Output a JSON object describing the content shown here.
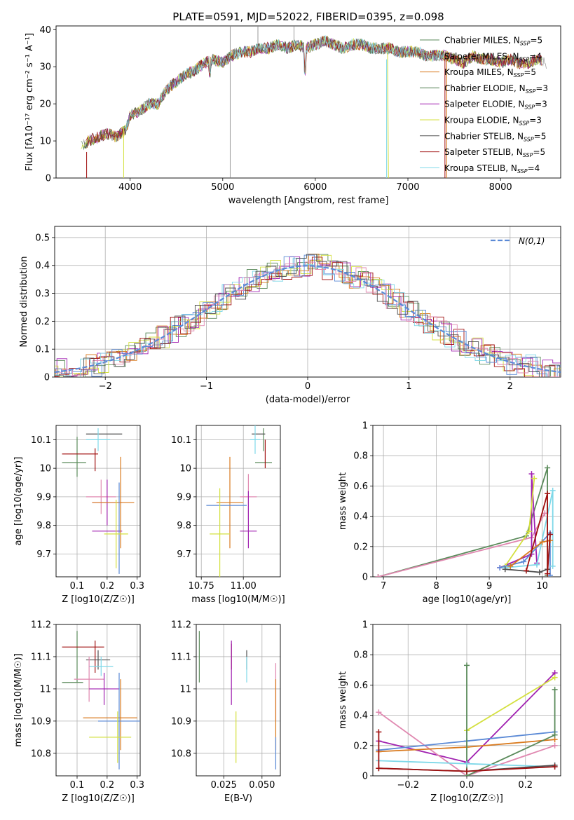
{
  "chart_data": [
    {
      "id": "spectrum",
      "type": "line",
      "title": "PLATE=0591, MJD=52022, FIBERID=0395, z=0.098",
      "xlabel": "wavelength [Angstrom, rest frame]",
      "ylabel": "Flux [fλ10⁻¹⁷ erg cm⁻² s⁻¹ A⁻¹]",
      "xlim": [
        3200,
        8650
      ],
      "ylim": [
        0,
        41
      ],
      "xticks": [
        4000,
        5000,
        6000,
        7000,
        8000
      ],
      "yticks": [
        0,
        10,
        20,
        30,
        40
      ],
      "grid": false,
      "legend_position": "top-right",
      "spectrum_envelope": {
        "x": [
          3450,
          3550,
          3650,
          3750,
          3850,
          3950,
          4000,
          4100,
          4200,
          4300,
          4400,
          4500,
          4600,
          4700,
          4800,
          4900,
          5000,
          5100,
          5200,
          5300,
          5400,
          5500,
          5600,
          5700,
          5800,
          5900,
          6000,
          6100,
          6200,
          6300,
          6400,
          6500,
          6600,
          6700,
          6800,
          6900,
          7000,
          7100,
          7200,
          7300,
          7400,
          7500,
          7600,
          7700,
          7800,
          7900,
          8000,
          8100,
          8200,
          8300,
          8400,
          8500
        ],
        "y": [
          8,
          10,
          11,
          12,
          11,
          13,
          17,
          18,
          20,
          20,
          24,
          26,
          28,
          29,
          31,
          32,
          31,
          33,
          34,
          34,
          35,
          35,
          36,
          35,
          36,
          35,
          36,
          37,
          36,
          35,
          36,
          36,
          35,
          35,
          35,
          34,
          34,
          34,
          33,
          33,
          33,
          32,
          31,
          33,
          32,
          32,
          31,
          32,
          31,
          31,
          32,
          31
        ]
      },
      "series": [
        {
          "name": "Chabrier MILES, NSSP=5",
          "color": "#5a8a5a"
        },
        {
          "name": "Salpeter MILES, NSSP=4",
          "color": "#8a8a8a"
        },
        {
          "name": "Kroupa MILES, NSSP=5",
          "color": "#d97a1e"
        },
        {
          "name": "Chabrier ELODIE, NSSP=3",
          "color": "#4a7a4a"
        },
        {
          "name": "Salpeter ELODIE, NSSP=3",
          "color": "#a020b0"
        },
        {
          "name": "Kroupa ELODIE, NSSP=3",
          "color": "#d4e040"
        },
        {
          "name": "Chabrier STELIB, NSSP=5",
          "color": "#505050"
        },
        {
          "name": "Salpeter STELIB, NSSP=5",
          "color": "#a01010"
        },
        {
          "name": "Kroupa STELIB, NSSP=4",
          "color": "#7ed8e8"
        }
      ]
    },
    {
      "id": "residuals",
      "type": "line",
      "xlabel": "(data-model)/error",
      "ylabel": "Normed distribution",
      "xlim": [
        -2.5,
        2.5
      ],
      "ylim": [
        0,
        0.54
      ],
      "xticks": [
        -2,
        -1,
        0,
        1,
        2
      ],
      "yticks": [
        0.0,
        0.1,
        0.2,
        0.3,
        0.4,
        0.5
      ],
      "grid": true,
      "legend_position": "top-right",
      "reference_curve": {
        "name": "N(0,1)",
        "color": "#5b8ad6",
        "dashed": true
      },
      "histogram_colors": [
        "#5a8a5a",
        "#d97a1e",
        "#a020b0",
        "#d4e040",
        "#a01010",
        "#7ed8e8",
        "#5b8ad6",
        "#e088b0",
        "#505050"
      ]
    },
    {
      "id": "age_vs_Z",
      "type": "scatter",
      "xlabel": "Z [log10(Z/Z☉)]",
      "ylabel": "age  [log10(age/yr)]",
      "xlim": [
        0.03,
        0.31
      ],
      "ylim": [
        9.62,
        10.15
      ],
      "xticks": [
        0.1,
        0.2,
        0.3
      ],
      "yticks": [
        9.7,
        9.8,
        9.9,
        10.0,
        10.1
      ],
      "grid": true,
      "points": [
        {
          "x": 0.1,
          "y": 10.04,
          "xerr": 0.0,
          "yerr": 0.07,
          "color": "#5a8a5a"
        },
        {
          "x": 0.09,
          "y": 10.02,
          "xerr": 0.04,
          "yerr": 0.0,
          "color": "#5a8a5a"
        },
        {
          "x": 0.11,
          "y": 10.05,
          "xerr": 0.06,
          "yerr": 0.0,
          "color": "#a01010"
        },
        {
          "x": 0.16,
          "y": 10.03,
          "xerr": 0.0,
          "yerr": 0.04,
          "color": "#a01010"
        },
        {
          "x": 0.19,
          "y": 10.12,
          "xerr": 0.06,
          "yerr": 0.0,
          "color": "#505050"
        },
        {
          "x": 0.17,
          "y": 10.1,
          "xerr": 0.04,
          "yerr": 0.04,
          "color": "#7ed8e8"
        },
        {
          "x": 0.18,
          "y": 9.9,
          "xerr": 0.05,
          "yerr": 0.06,
          "color": "#e088b0"
        },
        {
          "x": 0.2,
          "y": 9.88,
          "xerr": 0.05,
          "yerr": 0.08,
          "color": "#a020b0"
        },
        {
          "x": 0.2,
          "y": 9.78,
          "xerr": 0.05,
          "yerr": 0.0,
          "color": "#a020b0"
        },
        {
          "x": 0.22,
          "y": 9.88,
          "xerr": 0.07,
          "yerr": 0.0,
          "color": "#d97a1e"
        },
        {
          "x": 0.245,
          "y": 9.88,
          "xerr": 0.0,
          "yerr": 0.16,
          "color": "#d97a1e"
        },
        {
          "x": 0.24,
          "y": 9.79,
          "xerr": 0.0,
          "yerr": 0.16,
          "color": "#5b8ad6"
        },
        {
          "x": 0.23,
          "y": 9.77,
          "xerr": 0.04,
          "yerr": 0.12,
          "color": "#d4e040"
        }
      ]
    },
    {
      "id": "age_vs_mass",
      "type": "scatter",
      "xlabel": "mass [log10(M/M☉)]",
      "ylabel": "",
      "xlim": [
        10.72,
        11.22
      ],
      "ylim": [
        9.62,
        10.15
      ],
      "xticks": [
        10.75,
        11.0
      ],
      "yticks": [
        9.7,
        9.8,
        9.9,
        10.0,
        10.1
      ],
      "grid": true,
      "points": [
        {
          "x": 11.12,
          "y": 10.1,
          "xerr": 0.0,
          "yerr": 0.04,
          "color": "#5a8a5a"
        },
        {
          "x": 11.12,
          "y": 10.02,
          "xerr": 0.05,
          "yerr": 0.0,
          "color": "#5a8a5a"
        },
        {
          "x": 11.13,
          "y": 10.05,
          "xerr": 0.0,
          "yerr": 0.05,
          "color": "#a01010"
        },
        {
          "x": 11.09,
          "y": 10.12,
          "xerr": 0.04,
          "yerr": 0.0,
          "color": "#505050"
        },
        {
          "x": 11.07,
          "y": 10.1,
          "xerr": 0.03,
          "yerr": 0.05,
          "color": "#7ed8e8"
        },
        {
          "x": 11.03,
          "y": 9.9,
          "xerr": 0.05,
          "yerr": 0.08,
          "color": "#e088b0"
        },
        {
          "x": 11.03,
          "y": 9.82,
          "xerr": 0.0,
          "yerr": 0.1,
          "color": "#a020b0"
        },
        {
          "x": 11.03,
          "y": 9.78,
          "xerr": 0.05,
          "yerr": 0.0,
          "color": "#a020b0"
        },
        {
          "x": 10.92,
          "y": 9.88,
          "xerr": 0.08,
          "yerr": 0.16,
          "color": "#d97a1e"
        },
        {
          "x": 10.9,
          "y": 9.87,
          "xerr": 0.12,
          "yerr": 0.0,
          "color": "#5b8ad6"
        },
        {
          "x": 10.86,
          "y": 9.77,
          "xerr": 0.06,
          "yerr": 0.16,
          "color": "#d4e040"
        }
      ]
    },
    {
      "id": "weight_vs_age",
      "type": "line",
      "xlabel": "age  [log10(age/yr)]",
      "ylabel": "mass weight",
      "xlim": [
        6.8,
        10.35
      ],
      "ylim": [
        0,
        1.0
      ],
      "xticks": [
        7,
        8,
        9,
        10
      ],
      "yticks": [
        0.0,
        0.2,
        0.4,
        0.6,
        0.8,
        1.0
      ],
      "grid": true,
      "series": [
        {
          "color": "#5a8a5a",
          "x": [
            6.9,
            9.7,
            10.1,
            10.1
          ],
          "y": [
            0.0,
            0.27,
            0.72,
            0.01
          ]
        },
        {
          "color": "#e088b0",
          "x": [
            6.9,
            9.8,
            10.05
          ],
          "y": [
            0.0,
            0.26,
            0.42
          ]
        },
        {
          "color": "#a020b0",
          "x": [
            9.2,
            9.8,
            9.8,
            9.9
          ],
          "y": [
            0.06,
            0.15,
            0.68,
            0.09
          ]
        },
        {
          "color": "#d4e040",
          "x": [
            9.3,
            9.75,
            9.85
          ],
          "y": [
            0.07,
            0.3,
            0.65
          ]
        },
        {
          "color": "#5b8ad6",
          "x": [
            9.2,
            9.65,
            10.15,
            10.15
          ],
          "y": [
            0.06,
            0.1,
            0.29,
            0.01
          ]
        },
        {
          "color": "#7ed8e8",
          "x": [
            9.3,
            9.9,
            10.2,
            10.2
          ],
          "y": [
            0.06,
            0.08,
            0.57,
            0.07
          ]
        },
        {
          "color": "#d97a1e",
          "x": [
            9.4,
            10.0,
            10.15
          ],
          "y": [
            0.07,
            0.23,
            0.24
          ]
        },
        {
          "color": "#505050",
          "x": [
            9.3,
            9.95,
            10.1
          ],
          "y": [
            0.05,
            0.03,
            0.05
          ]
        },
        {
          "color": "#a01010",
          "x": [
            9.7,
            10.1,
            10.1,
            10.15
          ],
          "y": [
            0.04,
            0.55,
            0.02,
            0.28
          ]
        }
      ]
    },
    {
      "id": "mass_vs_Z",
      "type": "scatter",
      "xlabel": "Z [log10(Z/Z☉)]",
      "ylabel": "mass [log10(M/M☉)]",
      "xlim": [
        0.03,
        0.31
      ],
      "ylim": [
        10.73,
        11.2
      ],
      "xticks": [
        0.1,
        0.2,
        0.3
      ],
      "yticks": [
        10.8,
        10.9,
        11.0,
        11.1,
        11.2
      ],
      "grid": true,
      "points": [
        {
          "x": 0.1,
          "y": 11.1,
          "xerr": 0.0,
          "yerr": 0.08,
          "color": "#5a8a5a"
        },
        {
          "x": 0.085,
          "y": 11.02,
          "xerr": 0.035,
          "yerr": 0.0,
          "color": "#5a8a5a"
        },
        {
          "x": 0.12,
          "y": 11.13,
          "xerr": 0.07,
          "yerr": 0.0,
          "color": "#a01010"
        },
        {
          "x": 0.16,
          "y": 11.1,
          "xerr": 0.0,
          "yerr": 0.05,
          "color": "#a01010"
        },
        {
          "x": 0.17,
          "y": 11.09,
          "xerr": 0.04,
          "yerr": 0.03,
          "color": "#505050"
        },
        {
          "x": 0.18,
          "y": 11.07,
          "xerr": 0.04,
          "yerr": 0.03,
          "color": "#7ed8e8"
        },
        {
          "x": 0.14,
          "y": 11.03,
          "xerr": 0.05,
          "yerr": 0.07,
          "color": "#e088b0"
        },
        {
          "x": 0.19,
          "y": 11.0,
          "xerr": 0.05,
          "yerr": 0.05,
          "color": "#a020b0"
        },
        {
          "x": 0.21,
          "y": 10.91,
          "xerr": 0.09,
          "yerr": 0.0,
          "color": "#d97a1e"
        },
        {
          "x": 0.245,
          "y": 10.92,
          "xerr": 0.0,
          "yerr": 0.11,
          "color": "#d97a1e"
        },
        {
          "x": 0.24,
          "y": 10.9,
          "xerr": 0.07,
          "yerr": 0.15,
          "color": "#5b8ad6"
        },
        {
          "x": 0.21,
          "y": 10.85,
          "xerr": 0.07,
          "yerr": 0.0,
          "color": "#d4e040"
        },
        {
          "x": 0.235,
          "y": 10.85,
          "xerr": 0.0,
          "yerr": 0.08,
          "color": "#d4e040"
        }
      ]
    },
    {
      "id": "mass_vs_EBV",
      "type": "scatter",
      "xlabel": "E(B-V)",
      "ylabel": "",
      "xlim": [
        0.007,
        0.062
      ],
      "ylim": [
        10.73,
        11.2
      ],
      "xticks": [
        0.025,
        0.05
      ],
      "yticks": [
        10.8,
        10.9,
        11.0,
        11.1,
        11.2
      ],
      "grid": true,
      "points": [
        {
          "x": 0.009,
          "y": 11.1,
          "xerr": 0.0,
          "yerr": 0.08,
          "color": "#5a8a5a"
        },
        {
          "x": 0.03,
          "y": 11.1,
          "xerr": 0.0,
          "yerr": 0.04,
          "color": "#a01010"
        },
        {
          "x": 0.03,
          "y": 11.05,
          "xerr": 0.0,
          "yerr": 0.1,
          "color": "#a020b0"
        },
        {
          "x": 0.04,
          "y": 11.09,
          "xerr": 0.0,
          "yerr": 0.03,
          "color": "#505050"
        },
        {
          "x": 0.04,
          "y": 11.06,
          "xerr": 0.0,
          "yerr": 0.04,
          "color": "#7ed8e8"
        },
        {
          "x": 0.033,
          "y": 10.85,
          "xerr": 0.0,
          "yerr": 0.08,
          "color": "#d4e040"
        },
        {
          "x": 0.059,
          "y": 10.99,
          "xerr": 0.0,
          "yerr": 0.09,
          "color": "#e088b0"
        },
        {
          "x": 0.059,
          "y": 10.92,
          "xerr": 0.0,
          "yerr": 0.11,
          "color": "#d97a1e"
        },
        {
          "x": 0.059,
          "y": 10.8,
          "xerr": 0.0,
          "yerr": 0.05,
          "color": "#5b8ad6"
        }
      ]
    },
    {
      "id": "weight_vs_Z",
      "type": "line",
      "xlabel": "Z [log10(Z/Z☉)]",
      "ylabel": "mass weight",
      "xlim": [
        -0.32,
        0.32
      ],
      "ylim": [
        0,
        1.0
      ],
      "xticks": [
        -0.2,
        0.0,
        0.2
      ],
      "yticks": [
        0.0,
        0.2,
        0.4,
        0.6,
        0.8,
        1.0
      ],
      "grid": true,
      "series": [
        {
          "color": "#a020b0",
          "x": [
            -0.3,
            0.0,
            0.3
          ],
          "y": [
            0.23,
            0.09,
            0.68
          ]
        },
        {
          "color": "#e088b0",
          "x": [
            -0.3,
            0.0,
            0.3
          ],
          "y": [
            0.42,
            0.0,
            0.2
          ]
        },
        {
          "color": "#5b8ad6",
          "x": [
            -0.3,
            0.0,
            0.3
          ],
          "y": [
            0.17,
            0.23,
            0.29
          ]
        },
        {
          "color": "#d97a1e",
          "x": [
            -0.3,
            0.0,
            0.3
          ],
          "y": [
            0.16,
            0.19,
            0.24
          ]
        },
        {
          "color": "#d4e040",
          "x": [
            0.0,
            0.3
          ],
          "y": [
            0.3,
            0.65
          ]
        },
        {
          "color": "#5a8a5a",
          "x": [
            0.0,
            0.0,
            0.3,
            0.3
          ],
          "y": [
            0.73,
            0.0,
            0.27,
            0.57
          ]
        },
        {
          "color": "#7ed8e8",
          "x": [
            -0.3,
            0.0,
            0.3
          ],
          "y": [
            0.1,
            0.08,
            0.06
          ]
        },
        {
          "color": "#505050",
          "x": [
            -0.3,
            0.0,
            0.3
          ],
          "y": [
            0.05,
            0.03,
            0.07
          ]
        },
        {
          "color": "#a01010",
          "x": [
            -0.3,
            -0.3,
            0.0,
            0.3
          ],
          "y": [
            0.29,
            0.05,
            0.03,
            0.06
          ]
        }
      ]
    }
  ]
}
